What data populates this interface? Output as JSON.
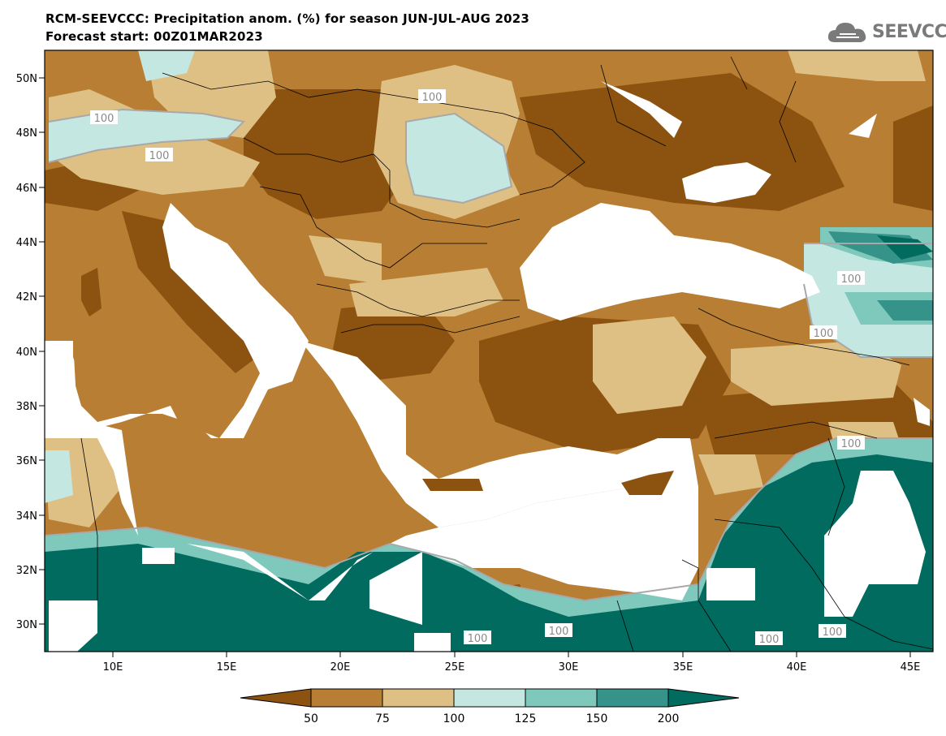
{
  "header": {
    "title": "RCM-SEEVCCC: Precipitation anom. (%) for season JUN-JUL-AUG 2023",
    "subtitle": "Forecast start: 00Z01MAR2023"
  },
  "logo": {
    "text": "SEEVCCC",
    "icon": "cloud-icon"
  },
  "map": {
    "lat_labels": [
      "50N",
      "48N",
      "46N",
      "44N",
      "42N",
      "40N",
      "38N",
      "36N",
      "34N",
      "32N",
      "30N"
    ],
    "lon_labels": [
      "10E",
      "15E",
      "20E",
      "25E",
      "30E",
      "35E",
      "40E",
      "45E"
    ],
    "contour_labels": [
      "100",
      "100",
      "100",
      "100",
      "100",
      "100",
      "100",
      "100",
      "100",
      "100",
      "100"
    ]
  },
  "colorbar": {
    "colors": [
      "#8c5210",
      "#b87e33",
      "#dfc084",
      "#c4e8e1",
      "#7fc9bc",
      "#35938a",
      "#006b5e"
    ],
    "labels": [
      "50",
      "75",
      "100",
      "125",
      "150",
      "200"
    ]
  }
}
